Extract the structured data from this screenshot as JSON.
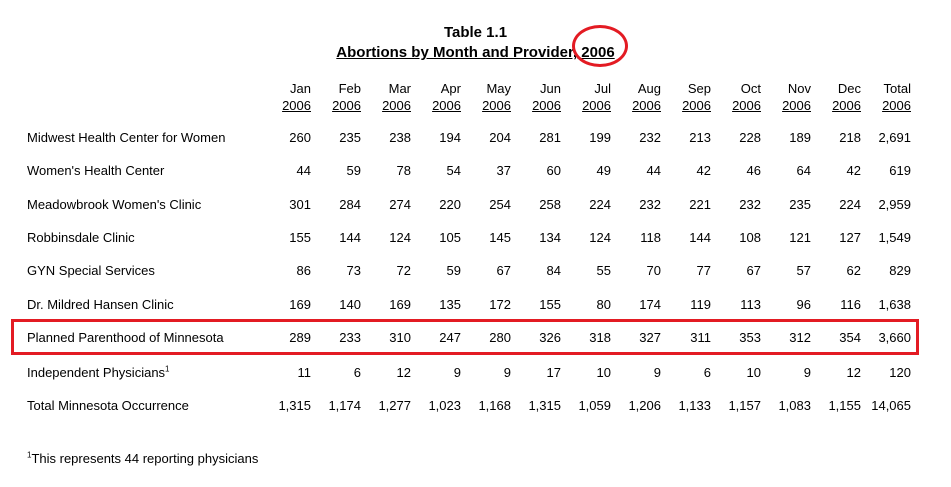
{
  "title": "Table 1.1",
  "subtitle": "Abortions by Month and Provider, 2006",
  "columns": [
    {
      "month": "Jan",
      "year": "2006"
    },
    {
      "month": "Feb",
      "year": "2006"
    },
    {
      "month": "Mar",
      "year": "2006"
    },
    {
      "month": "Apr",
      "year": "2006"
    },
    {
      "month": "May",
      "year": "2006"
    },
    {
      "month": "Jun",
      "year": "2006"
    },
    {
      "month": "Jul",
      "year": "2006"
    },
    {
      "month": "Aug",
      "year": "2006"
    },
    {
      "month": "Sep",
      "year": "2006"
    },
    {
      "month": "Oct",
      "year": "2006"
    },
    {
      "month": "Nov",
      "year": "2006"
    },
    {
      "month": "Dec",
      "year": "2006"
    },
    {
      "month": "Total",
      "year": "2006"
    }
  ],
  "rows": [
    {
      "label": "Midwest Health Center for Women",
      "sup": "",
      "values": [
        "260",
        "235",
        "238",
        "194",
        "204",
        "281",
        "199",
        "232",
        "213",
        "228",
        "189",
        "218",
        "2,691"
      ]
    },
    {
      "label": "Women's Health Center",
      "sup": "",
      "values": [
        "44",
        "59",
        "78",
        "54",
        "37",
        "60",
        "49",
        "44",
        "42",
        "46",
        "64",
        "42",
        "619"
      ]
    },
    {
      "label": "Meadowbrook Women's Clinic",
      "sup": "",
      "values": [
        "301",
        "284",
        "274",
        "220",
        "254",
        "258",
        "224",
        "232",
        "221",
        "232",
        "235",
        "224",
        "2,959"
      ]
    },
    {
      "label": "Robbinsdale Clinic",
      "sup": "",
      "values": [
        "155",
        "144",
        "124",
        "105",
        "145",
        "134",
        "124",
        "118",
        "144",
        "108",
        "121",
        "127",
        "1,549"
      ]
    },
    {
      "label": "GYN Special Services",
      "sup": "",
      "values": [
        "86",
        "73",
        "72",
        "59",
        "67",
        "84",
        "55",
        "70",
        "77",
        "67",
        "57",
        "62",
        "829"
      ]
    },
    {
      "label": "Dr. Mildred Hansen Clinic",
      "sup": "",
      "values": [
        "169",
        "140",
        "169",
        "135",
        "172",
        "155",
        "80",
        "174",
        "119",
        "113",
        "96",
        "116",
        "1,638"
      ]
    },
    {
      "label": "Planned Parenthood of Minnesota",
      "sup": "",
      "values": [
        "289",
        "233",
        "310",
        "247",
        "280",
        "326",
        "318",
        "327",
        "311",
        "353",
        "312",
        "354",
        "3,660"
      ]
    },
    {
      "label": "Independent Physicians",
      "sup": "1",
      "values": [
        "11",
        "6",
        "12",
        "9",
        "9",
        "17",
        "10",
        "9",
        "6",
        "10",
        "9",
        "12",
        "120"
      ]
    },
    {
      "label": "Total Minnesota Occurrence",
      "sup": "",
      "values": [
        "1,315",
        "1,174",
        "1,277",
        "1,023",
        "1,168",
        "1,315",
        "1,059",
        "1,206",
        "1,133",
        "1,157",
        "1,083",
        "1,155",
        "14,065"
      ]
    }
  ],
  "footnote": {
    "mark": "1",
    "text": "This represents 44 reporting physicians"
  },
  "annotation_color": "#e31b23"
}
